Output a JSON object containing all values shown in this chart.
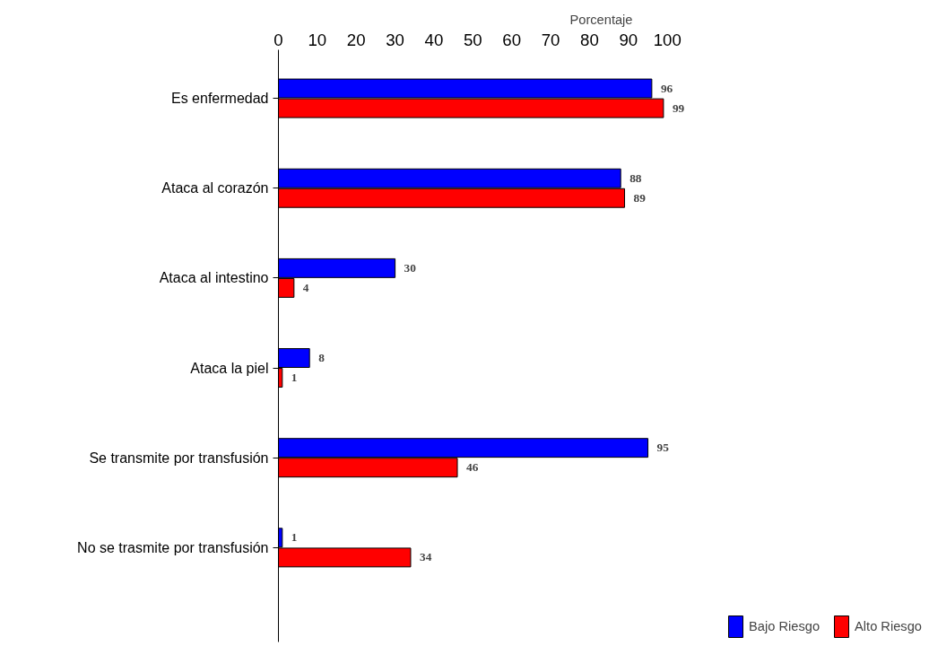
{
  "chart_data": {
    "type": "bar",
    "orientation": "horizontal",
    "xlabel": "Porcentaje",
    "categories": [
      "Es enfermedad",
      "Ataca al corazón",
      "Ataca al intestino",
      "Ataca la piel",
      "Se transmite por transfusión",
      "No se trasmite por transfusión"
    ],
    "series": [
      {
        "name": "Bajo Riesgo",
        "color": "#0000ff",
        "values": [
          96,
          88,
          30,
          8,
          95,
          1
        ]
      },
      {
        "name": "Alto Riesgo",
        "color": "#ff0000",
        "values": [
          99,
          89,
          4,
          1,
          46,
          34
        ]
      }
    ],
    "xlim": [
      0,
      100
    ],
    "xticks": [
      0,
      10,
      20,
      30,
      40,
      50,
      60,
      70,
      80,
      90,
      100
    ],
    "data_labels": true,
    "grid": false,
    "legend": "bottom right"
  }
}
